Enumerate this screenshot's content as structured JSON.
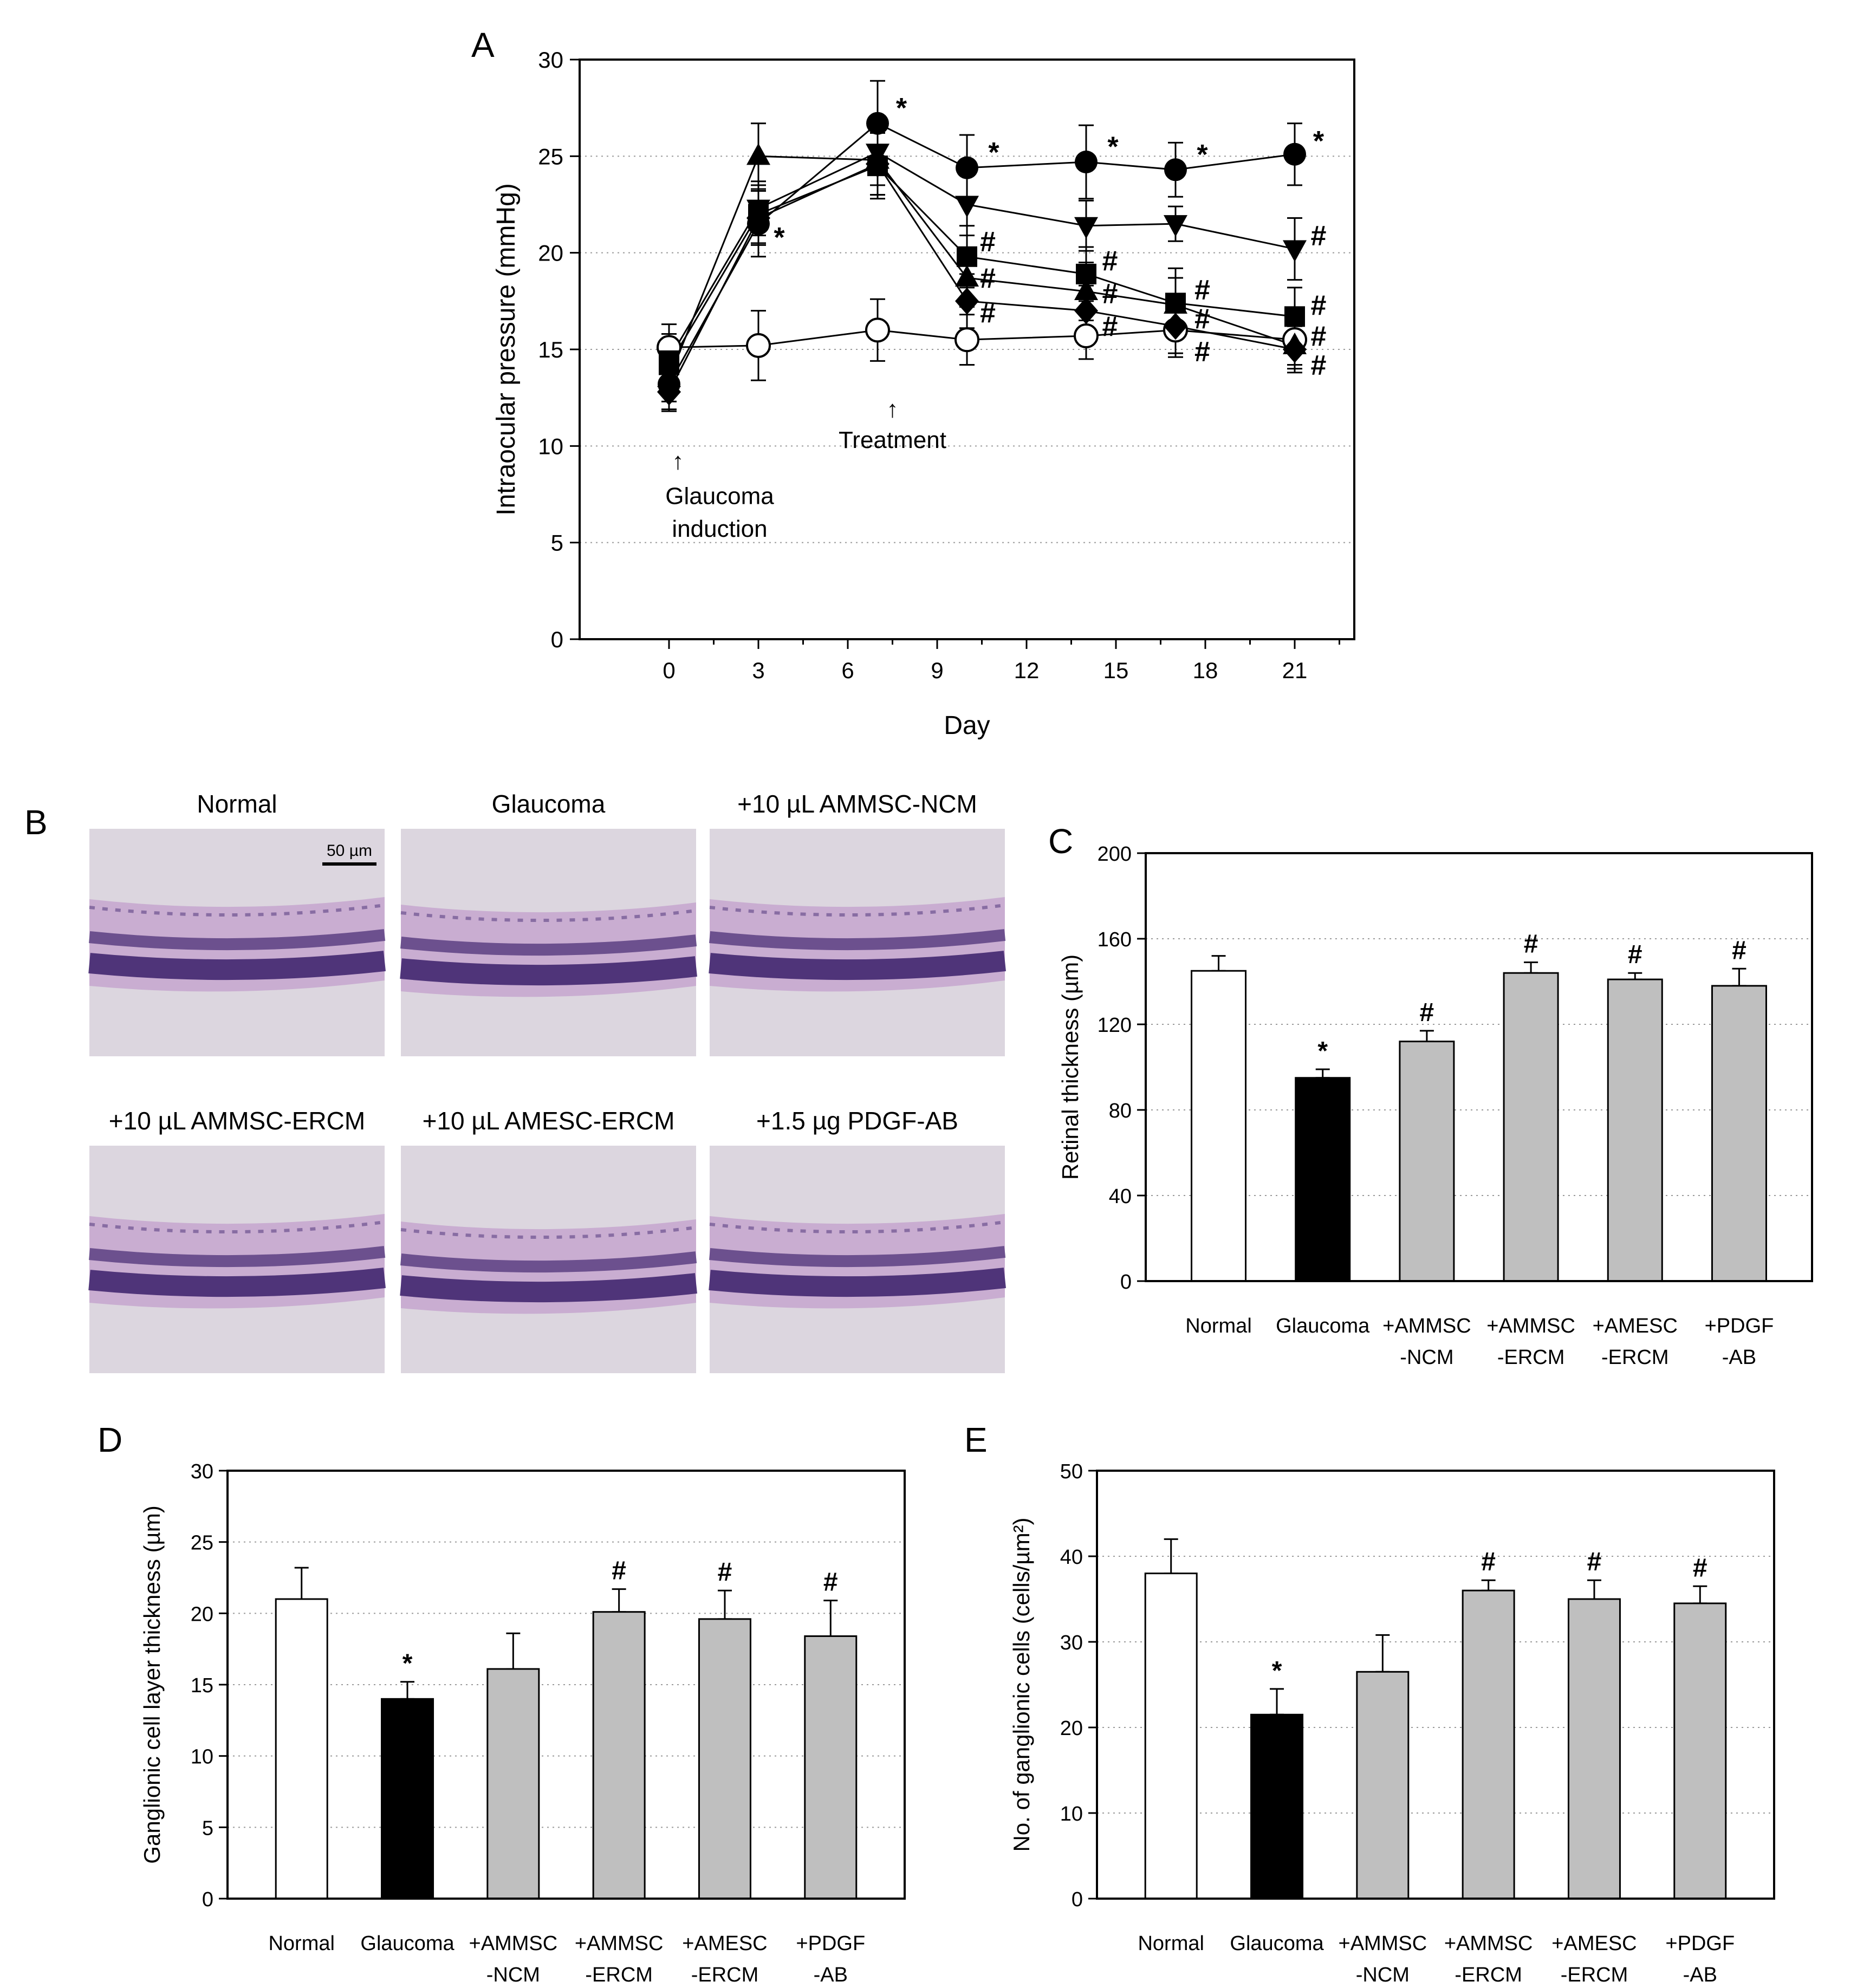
{
  "colors": {
    "hist_bg": "#dcd6df",
    "retina_light": "#c7a9cf",
    "retina_dark": "#3a1f6a",
    "bar_white": "#ffffff",
    "bar_black": "#000000",
    "bar_gray": "#bfbfbf"
  },
  "panels": {
    "A": "A",
    "B": "B",
    "C": "C",
    "D": "D",
    "E": "E"
  },
  "histology": {
    "titles": [
      "Normal",
      "Glaucoma",
      "+10 µL AMMSC-NCM",
      "+10 µL AMMSC-ERCM",
      "+10 µL AMESC-ERCM",
      "+1.5 µg PDGF-AB"
    ],
    "scalebar_label": "50 µm"
  },
  "chart_data": [
    {
      "id": "A",
      "type": "line",
      "xlabel": "Day",
      "ylabel": "Intraocular pressure (mmHg)",
      "xlim": [
        -3,
        23
      ],
      "ylim": [
        0,
        30
      ],
      "xticks": [
        0,
        3,
        6,
        9,
        12,
        15,
        18,
        21
      ],
      "yticks": [
        0,
        5,
        10,
        15,
        20,
        25,
        30
      ],
      "grid": "horizontal-dotted",
      "annotations": [
        {
          "text": "↑",
          "x": 0.3,
          "y": 8.8
        },
        {
          "text": "Glaucoma",
          "x": 1.7,
          "y": 7.0
        },
        {
          "text": "induction",
          "x": 1.7,
          "y": 5.3
        },
        {
          "text": "↑",
          "x": 7.5,
          "y": 11.5
        },
        {
          "text": "Treatment",
          "x": 7.5,
          "y": 9.9
        }
      ],
      "series": [
        {
          "marker": "circle-open",
          "x": [
            0,
            3,
            7,
            10,
            14,
            17,
            21
          ],
          "y": [
            15.1,
            15.2,
            16.0,
            15.5,
            15.7,
            16.0,
            15.5
          ],
          "err": [
            1.2,
            1.8,
            1.6,
            1.3,
            1.2,
            1.4,
            1.3
          ],
          "sig": []
        },
        {
          "marker": "circle",
          "x": [
            0,
            3,
            7,
            10,
            14,
            17,
            21
          ],
          "y": [
            13.2,
            21.5,
            26.7,
            24.4,
            24.7,
            24.3,
            25.1
          ],
          "err": [
            1.3,
            1.7,
            2.2,
            1.7,
            1.9,
            1.4,
            1.6
          ],
          "sig": [
            {
              "label": "*",
              "x": 3.7,
              "y": 20.8
            },
            {
              "label": "*",
              "x": 7.8,
              "y": 27.5
            },
            {
              "label": "*",
              "x": 10.9,
              "y": 25.2
            },
            {
              "label": "*",
              "x": 14.9,
              "y": 25.5
            },
            {
              "label": "*",
              "x": 17.9,
              "y": 25.1
            },
            {
              "label": "*",
              "x": 21.8,
              "y": 25.8
            }
          ]
        },
        {
          "marker": "triangle-up",
          "x": [
            0,
            3,
            7,
            10,
            14,
            17,
            21
          ],
          "y": [
            13.5,
            25.0,
            24.8,
            18.7,
            18.0,
            17.3,
            15.2
          ],
          "err": [
            1.2,
            1.7,
            1.8,
            1.5,
            1.5,
            1.4,
            1.2
          ],
          "sig": []
        },
        {
          "marker": "triangle-down",
          "x": [
            0,
            3,
            7,
            10,
            14,
            17,
            21
          ],
          "y": [
            14.5,
            22.3,
            25.2,
            22.5,
            21.4,
            21.5,
            20.2
          ],
          "err": [
            1.3,
            1.4,
            1.7,
            1.6,
            1.3,
            0.9,
            1.6
          ],
          "sig": [
            {
              "label": "#",
              "x": 21.8,
              "y": 20.9
            }
          ]
        },
        {
          "marker": "square",
          "x": [
            0,
            3,
            7,
            10,
            14,
            17,
            21
          ],
          "y": [
            14.2,
            22.0,
            24.5,
            19.8,
            18.9,
            17.4,
            16.7
          ],
          "err": [
            1.2,
            1.5,
            1.7,
            1.6,
            1.4,
            1.8,
            1.5
          ],
          "sig": [
            {
              "label": "#",
              "x": 10.7,
              "y": 20.6
            },
            {
              "label": "#",
              "x": 14.8,
              "y": 19.6
            },
            {
              "label": "#",
              "x": 17.9,
              "y": 18.1
            },
            {
              "label": "#",
              "x": 21.8,
              "y": 17.3
            }
          ]
        },
        {
          "marker": "diamond",
          "x": [
            0,
            3,
            7,
            10,
            14,
            17,
            21
          ],
          "y": [
            12.8,
            21.8,
            24.6,
            17.5,
            17.0,
            16.2,
            15.0
          ],
          "err": [
            1.0,
            1.4,
            1.6,
            1.4,
            1.3,
            1.4,
            1.2
          ],
          "sig": [
            {
              "label": "#",
              "x": 10.7,
              "y": 18.7
            },
            {
              "label": "#",
              "x": 10.7,
              "y": 16.9
            },
            {
              "label": "#",
              "x": 14.8,
              "y": 17.9
            },
            {
              "label": "#",
              "x": 14.8,
              "y": 16.2
            },
            {
              "label": "#",
              "x": 17.9,
              "y": 16.6
            },
            {
              "label": "#",
              "x": 17.9,
              "y": 14.9
            },
            {
              "label": "#",
              "x": 21.8,
              "y": 15.7
            },
            {
              "label": "#",
              "x": 21.8,
              "y": 14.2
            }
          ]
        }
      ]
    },
    {
      "id": "C",
      "type": "bar",
      "ylabel": "Retinal thickness (µm)",
      "ylim": [
        0,
        200
      ],
      "yticks": [
        0,
        40,
        80,
        120,
        160,
        200
      ],
      "grid": "horizontal-dotted",
      "categories": [
        [
          "Normal"
        ],
        [
          "Glaucoma"
        ],
        [
          "+AMMSC",
          "-NCM"
        ],
        [
          "+AMMSC",
          "-ERCM"
        ],
        [
          "+AMESC",
          "-ERCM"
        ],
        [
          "+PDGF",
          "-AB"
        ]
      ],
      "values": [
        145,
        95,
        112,
        144,
        141,
        138
      ],
      "err": [
        7,
        4,
        5,
        5,
        3,
        8
      ],
      "fills": [
        "white",
        "black",
        "gray",
        "gray",
        "gray",
        "gray"
      ],
      "sig": [
        "",
        "*",
        "#",
        "#",
        "#",
        "#"
      ]
    },
    {
      "id": "D",
      "type": "bar",
      "ylabel": "Ganglionic cell layer thickness (µm)",
      "ylim": [
        0,
        30
      ],
      "yticks": [
        0,
        5,
        10,
        15,
        20,
        25,
        30
      ],
      "grid": "horizontal-dotted",
      "categories": [
        [
          "Normal"
        ],
        [
          "Glaucoma"
        ],
        [
          "+AMMSC",
          "-NCM"
        ],
        [
          "+AMMSC",
          "-ERCM"
        ],
        [
          "+AMESC",
          "-ERCM"
        ],
        [
          "+PDGF",
          "-AB"
        ]
      ],
      "values": [
        21.0,
        14.0,
        16.1,
        20.1,
        19.6,
        18.4
      ],
      "err": [
        2.2,
        1.2,
        2.5,
        1.6,
        2.0,
        2.5
      ],
      "fills": [
        "white",
        "black",
        "gray",
        "gray",
        "gray",
        "gray"
      ],
      "sig": [
        "",
        "*",
        "",
        "#",
        "#",
        "#"
      ]
    },
    {
      "id": "E",
      "type": "bar",
      "ylabel": "No. of ganglionic cells (cells/µm²)",
      "ylim": [
        0,
        50
      ],
      "yticks": [
        0,
        10,
        20,
        30,
        40,
        50
      ],
      "grid": "horizontal-dotted",
      "categories": [
        [
          "Normal"
        ],
        [
          "Glaucoma"
        ],
        [
          "+AMMSC",
          "-NCM"
        ],
        [
          "+AMMSC",
          "-ERCM"
        ],
        [
          "+AMESC",
          "-ERCM"
        ],
        [
          "+PDGF",
          "-AB"
        ]
      ],
      "values": [
        38,
        21.5,
        26.5,
        36,
        35,
        34.5
      ],
      "err": [
        4,
        3,
        4.3,
        1.2,
        2.2,
        2
      ],
      "fills": [
        "white",
        "black",
        "gray",
        "gray",
        "gray",
        "gray"
      ],
      "sig": [
        "",
        "*",
        "",
        "#",
        "#",
        "#"
      ]
    }
  ]
}
